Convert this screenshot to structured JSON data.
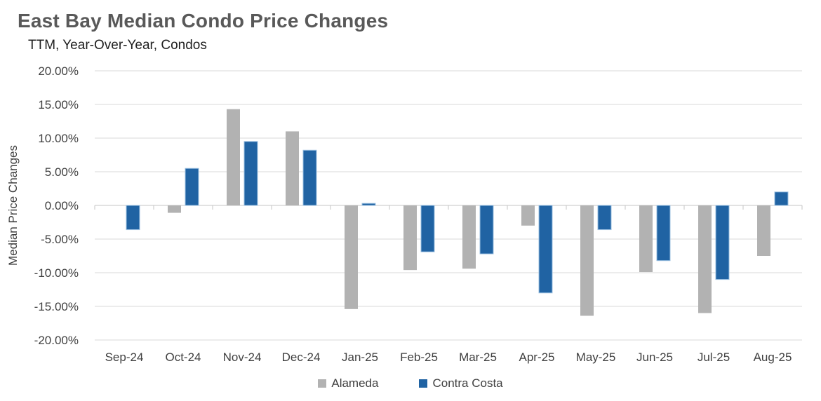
{
  "header": {
    "title": "East Bay Median Condo Price Changes",
    "subtitle": "TTM, Year-Over-Year, Condos"
  },
  "chart_data": {
    "type": "bar",
    "title": "East Bay Median Condo Price Changes",
    "subtitle": "TTM, Year-Over-Year, Condos",
    "xlabel": "",
    "ylabel": "Median Price Changes",
    "categories": [
      "Sep-24",
      "Oct-24",
      "Nov-24",
      "Dec-24",
      "Jan-25",
      "Feb-25",
      "Mar-25",
      "Apr-25",
      "May-25",
      "Jun-25",
      "Jul-25",
      "Aug-25"
    ],
    "series": [
      {
        "name": "Alameda",
        "color": "#B2B2B2",
        "border_color": "",
        "values": [
          0,
          -1.1,
          14.3,
          11.0,
          -15.4,
          -9.6,
          -9.4,
          -3.0,
          -16.4,
          -9.9,
          -16.0,
          -7.5
        ]
      },
      {
        "name": "Contra Costa",
        "color": "#2063A3",
        "border_color": "#9CC0E2",
        "values": [
          -3.6,
          5.5,
          9.5,
          8.2,
          0.3,
          -6.9,
          -7.2,
          -13.0,
          -3.6,
          -8.2,
          -11.0,
          2.0
        ]
      }
    ],
    "ylim": [
      -20,
      20
    ],
    "y_ticks": [
      20,
      15,
      10,
      5,
      0,
      -5,
      -10,
      -15,
      -20
    ],
    "y_tick_labels": [
      "20.00%",
      "15.00%",
      "10.00%",
      "5.00%",
      "0.00%",
      "-5.00%",
      "-10.00%",
      "-15.00%",
      "-20.00%"
    ],
    "grid": true,
    "legend_position": "bottom"
  },
  "colors": {
    "title_text": "#595959",
    "subtitle_text": "#1F1F1F",
    "axis_text": "#404040",
    "gridline": "#D9D9D9",
    "axis_line": "#C6C6C6",
    "background": "#FFFFFF"
  }
}
